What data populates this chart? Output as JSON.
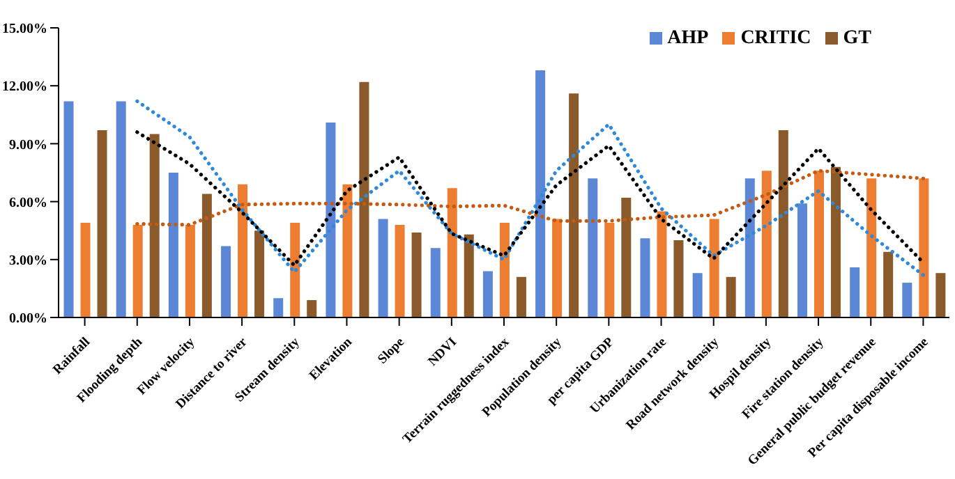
{
  "chart_data": {
    "type": "bar",
    "categories": [
      "Rainfall",
      "Flooding depth",
      "Flow velocity",
      "Distance to river",
      "Stream density",
      "Elevation",
      "Slope",
      "NDVI",
      "Terrain ruggedness index",
      "Population density",
      "per capita GDP",
      "Urbanization rate",
      "Road network density",
      "Hospil density",
      "Fire station density",
      "General public budget revenue",
      "Per capita disposable income"
    ],
    "series": [
      {
        "name": "AHP",
        "color": "#5b87d6",
        "values": [
          11.2,
          11.2,
          7.5,
          3.7,
          1.0,
          10.1,
          5.1,
          3.6,
          2.4,
          12.8,
          7.2,
          4.1,
          2.3,
          7.2,
          5.9,
          2.6,
          1.8
        ]
      },
      {
        "name": "CRITIC",
        "color": "#ed7d31",
        "values": [
          4.9,
          4.8,
          4.8,
          6.9,
          4.9,
          6.9,
          4.8,
          6.7,
          4.9,
          5.1,
          4.9,
          5.5,
          5.1,
          7.6,
          7.6,
          7.2,
          7.2
        ]
      },
      {
        "name": "GT",
        "color": "#8b5a2b",
        "values": [
          9.7,
          9.5,
          6.4,
          4.5,
          0.9,
          12.2,
          4.4,
          4.3,
          2.1,
          11.6,
          6.2,
          4.0,
          2.1,
          9.7,
          7.8,
          3.4,
          2.3
        ]
      },
      {
        "type": "line",
        "line_style": "dotted",
        "color": "#2e8ad8",
        "values": [
          null,
          11.2,
          9.35,
          5.6,
          2.35,
          5.55,
          7.6,
          4.35,
          3.0,
          7.6,
          10.0,
          5.65,
          3.2,
          4.75,
          6.55,
          4.25,
          2.2
        ]
      },
      {
        "type": "line",
        "line_style": "dotted",
        "color": "#c55a11",
        "values": [
          null,
          4.85,
          4.8,
          5.85,
          5.9,
          5.9,
          5.85,
          5.75,
          5.8,
          5.0,
          5.0,
          5.2,
          5.3,
          6.35,
          7.6,
          7.4,
          7.2
        ]
      },
      {
        "type": "line",
        "line_style": "dotted",
        "color": "#000000",
        "values": [
          null,
          9.6,
          7.95,
          5.45,
          2.7,
          6.55,
          8.3,
          4.35,
          3.2,
          6.85,
          8.9,
          5.1,
          3.05,
          5.9,
          8.75,
          5.6,
          2.85
        ]
      }
    ],
    "ylim": [
      0,
      15
    ],
    "yticks": [
      {
        "value": 0,
        "label": "0.00%"
      },
      {
        "value": 3,
        "label": "3.00%"
      },
      {
        "value": 6,
        "label": "6.00%"
      },
      {
        "value": 9,
        "label": "9.00%"
      },
      {
        "value": 12,
        "label": "12.00%"
      },
      {
        "value": 15,
        "label": "15.00%"
      }
    ],
    "grid": false,
    "legend": "top right",
    "marker": "none"
  }
}
